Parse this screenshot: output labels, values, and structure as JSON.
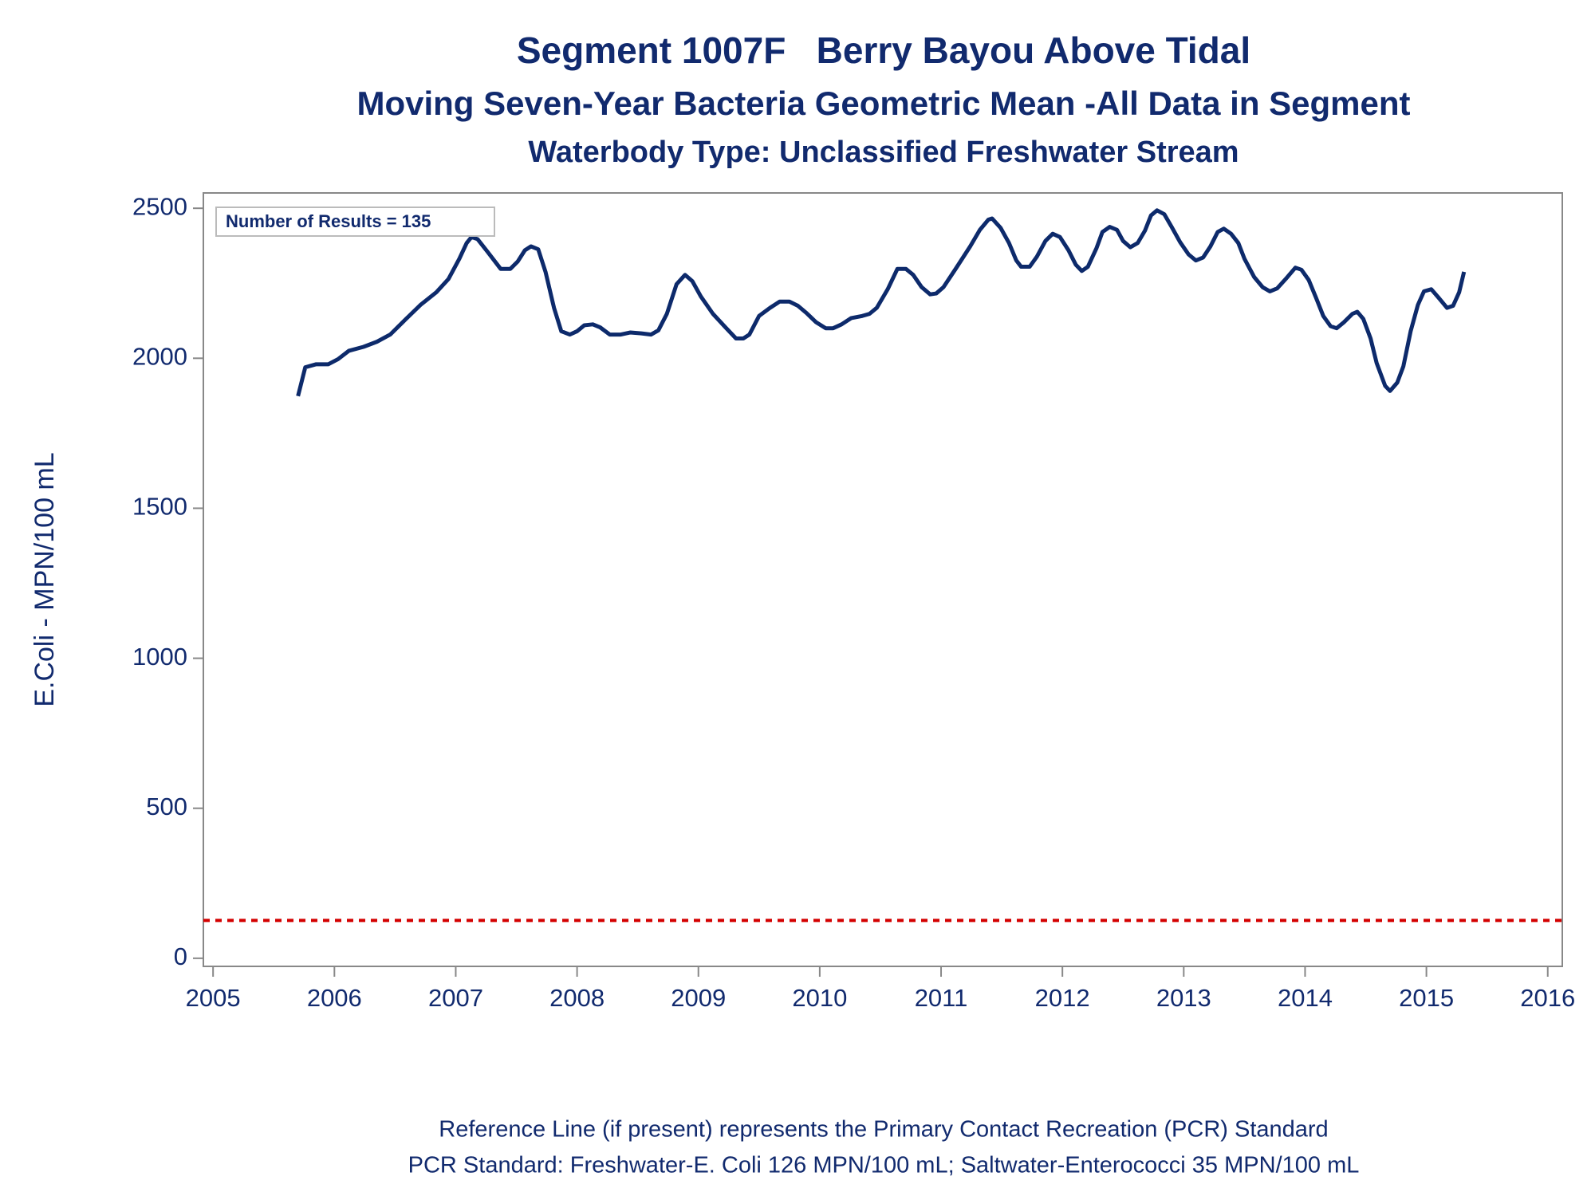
{
  "chart_data": {
    "type": "line",
    "title": "Segment 1007F   Berry Bayou Above Tidal",
    "subtitle": "Moving Seven-Year Bacteria Geometric Mean -All Data in Segment",
    "subtitle2": "Waterbody Type: Unclassified Freshwater Stream",
    "ylabel": "E.Coli - MPN/100 mL",
    "annotation": "Number of Results = 135",
    "footnotes": [
      "Reference Line (if present) represents the Primary Contact Recreation (PCR) Standard",
      "PCR Standard: Freshwater-E. Coli 126 MPN/100 mL; Saltwater-Enterococci 35 MPN/100 mL"
    ],
    "xlim": [
      2004.92,
      2016.12
    ],
    "xticks": [
      2005,
      2006,
      2007,
      2008,
      2009,
      2010,
      2011,
      2012,
      2013,
      2014,
      2015,
      2016
    ],
    "ylim": [
      -27,
      2551
    ],
    "yticks": [
      0,
      500,
      1000,
      1500,
      2000,
      2500
    ],
    "grid": false,
    "reference_lines": [
      {
        "value": 126,
        "color": "#d40000"
      }
    ],
    "x": [
      2005.7,
      2005.76,
      2005.85,
      2005.95,
      2006.03,
      2006.12,
      2006.24,
      2006.35,
      2006.46,
      2006.58,
      2006.71,
      2006.84,
      2006.94,
      2007.03,
      2007.09,
      2007.13,
      2007.18,
      2007.26,
      2007.37,
      2007.45,
      2007.51,
      2007.57,
      2007.62,
      2007.68,
      2007.74,
      2007.81,
      2007.87,
      2007.94,
      2008.0,
      2008.06,
      2008.13,
      2008.19,
      2008.27,
      2008.36,
      2008.44,
      2008.53,
      2008.61,
      2008.67,
      2008.74,
      2008.82,
      2008.89,
      2008.95,
      2009.02,
      2009.12,
      2009.23,
      2009.31,
      2009.37,
      2009.42,
      2009.5,
      2009.59,
      2009.67,
      2009.75,
      2009.82,
      2009.89,
      2009.97,
      2010.05,
      2010.11,
      2010.18,
      2010.26,
      2010.35,
      2010.41,
      2010.47,
      2010.56,
      2010.64,
      2010.71,
      2010.77,
      2010.84,
      2010.91,
      2010.96,
      2011.02,
      2011.12,
      2011.24,
      2011.32,
      2011.39,
      2011.42,
      2011.49,
      2011.56,
      2011.62,
      2011.66,
      2011.73,
      2011.79,
      2011.86,
      2011.92,
      2011.98,
      2012.05,
      2012.11,
      2012.16,
      2012.21,
      2012.28,
      2012.33,
      2012.39,
      2012.45,
      2012.5,
      2012.56,
      2012.62,
      2012.68,
      2012.73,
      2012.78,
      2012.84,
      2012.9,
      2012.97,
      2013.04,
      2013.1,
      2013.16,
      2013.22,
      2013.28,
      2013.33,
      2013.39,
      2013.45,
      2013.5,
      2013.58,
      2013.65,
      2013.71,
      2013.77,
      2013.84,
      2013.92,
      2013.97,
      2014.03,
      2014.09,
      2014.15,
      2014.21,
      2014.26,
      2014.32,
      2014.39,
      2014.43,
      2014.48,
      2014.54,
      2014.59,
      2014.66,
      2014.7,
      2014.76,
      2014.81,
      2014.87,
      2014.93,
      2014.98,
      2015.04,
      2015.1,
      2015.17,
      2015.22,
      2015.27,
      2015.31
    ],
    "series": [
      {
        "color": "#0d2a6b",
        "values": [
          1874,
          1970,
          1980,
          1980,
          1997,
          2025,
          2038,
          2055,
          2079,
          2127,
          2178,
          2220,
          2264,
          2332,
          2384,
          2404,
          2397,
          2356,
          2298,
          2298,
          2322,
          2360,
          2373,
          2363,
          2288,
          2168,
          2090,
          2079,
          2090,
          2110,
          2113,
          2103,
          2079,
          2079,
          2086,
          2083,
          2079,
          2093,
          2148,
          2247,
          2278,
          2257,
          2206,
          2148,
          2100,
          2066,
          2066,
          2079,
          2141,
          2168,
          2189,
          2189,
          2175,
          2151,
          2120,
          2100,
          2100,
          2113,
          2134,
          2141,
          2148,
          2168,
          2230,
          2298,
          2298,
          2278,
          2237,
          2213,
          2216,
          2237,
          2298,
          2373,
          2428,
          2462,
          2466,
          2435,
          2384,
          2326,
          2305,
          2305,
          2339,
          2391,
          2415,
          2404,
          2360,
          2312,
          2291,
          2305,
          2366,
          2421,
          2438,
          2428,
          2391,
          2370,
          2384,
          2425,
          2476,
          2493,
          2480,
          2438,
          2387,
          2346,
          2326,
          2336,
          2373,
          2421,
          2432,
          2415,
          2384,
          2332,
          2271,
          2237,
          2223,
          2233,
          2264,
          2302,
          2295,
          2261,
          2202,
          2141,
          2107,
          2100,
          2120,
          2148,
          2155,
          2131,
          2066,
          1984,
          1908,
          1891,
          1919,
          1973,
          2090,
          2178,
          2223,
          2230,
          2202,
          2168,
          2175,
          2220,
          2288
        ]
      }
    ]
  }
}
